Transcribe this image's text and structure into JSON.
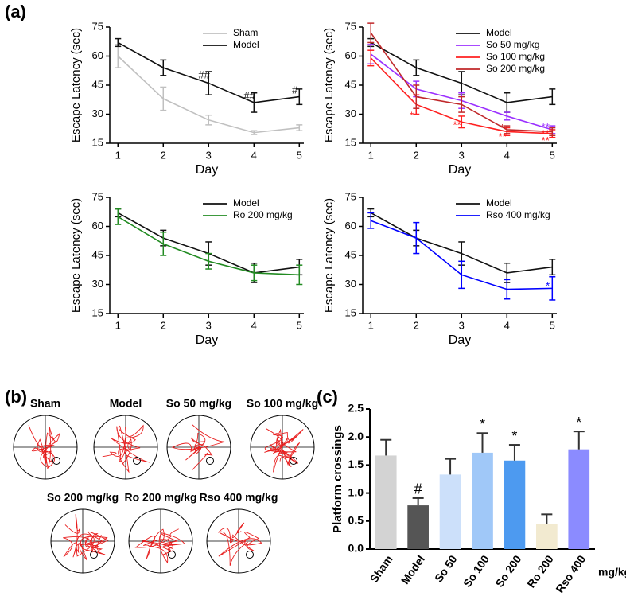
{
  "panel_labels": [
    "(a)",
    "(b)",
    "(c)"
  ],
  "chart_data": [
    {
      "type": "line",
      "xlabel": "Day",
      "ylabel": "Escape Latency (sec)",
      "x": [
        1,
        2,
        3,
        4,
        5
      ],
      "xlim": [
        0.82,
        5.1
      ],
      "xticks": [
        1,
        2,
        3,
        4,
        5
      ],
      "ylim": [
        15,
        75
      ],
      "yticks": [
        15,
        30,
        45,
        60,
        75
      ],
      "legend": "upper right",
      "series": [
        {
          "name": "Sham",
          "color": "#c0c0c0",
          "values": [
            60,
            38,
            27,
            20.5,
            23
          ],
          "errors": [
            6,
            6,
            2.5,
            1,
            1.5
          ]
        },
        {
          "name": "Model",
          "color": "#111111",
          "values": [
            67,
            54,
            46,
            36,
            39
          ],
          "errors": [
            2,
            4,
            6,
            5,
            4
          ]
        }
      ],
      "annotations": [
        {
          "text": "##",
          "x": 2.9,
          "y": 50,
          "color": "#111111"
        },
        {
          "text": "##",
          "x": 3.9,
          "y": 39,
          "color": "#111111"
        },
        {
          "text": "#",
          "x": 4.9,
          "y": 42,
          "color": "#111111"
        }
      ]
    },
    {
      "type": "line",
      "xlabel": "Day",
      "ylabel": "Escape Latency (sec)",
      "x": [
        1,
        2,
        3,
        4,
        5
      ],
      "xlim": [
        0.82,
        5.1
      ],
      "xticks": [
        1,
        2,
        3,
        4,
        5
      ],
      "ylim": [
        15,
        75
      ],
      "yticks": [
        15,
        30,
        45,
        60,
        75
      ],
      "legend": "upper right",
      "series": [
        {
          "name": "Model",
          "color": "#111111",
          "values": [
            67,
            54,
            46,
            36,
            39
          ],
          "errors": [
            2,
            4,
            6,
            5,
            4
          ]
        },
        {
          "name": "So 50 mg/kg",
          "color": "#9b30ff",
          "values": [
            61,
            43,
            37,
            29,
            22
          ],
          "errors": [
            5,
            4,
            4,
            2,
            2
          ]
        },
        {
          "name": "So 100 mg/kg",
          "color": "#ff2020",
          "values": [
            59,
            35,
            26,
            21,
            20
          ],
          "errors": [
            4,
            5,
            3,
            2,
            2
          ]
        },
        {
          "name": "So 200 mg/kg",
          "color": "#c0282a",
          "values": [
            72,
            39,
            35,
            22,
            21
          ],
          "errors": [
            5,
            6,
            4,
            2,
            2
          ]
        }
      ],
      "annotations": [
        {
          "text": "*",
          "x": 1.9,
          "y": 29,
          "color": "#ff2020"
        },
        {
          "text": "**",
          "x": 2.9,
          "y": 24,
          "color": "#ff2020"
        },
        {
          "text": "*",
          "x": 3.9,
          "y": 22.5,
          "color": "#c0282a"
        },
        {
          "text": "**",
          "x": 3.9,
          "y": 18,
          "color": "#ff2020"
        },
        {
          "text": "**",
          "x": 4.85,
          "y": 23,
          "color": "#9b30ff"
        },
        {
          "text": "**",
          "x": 4.85,
          "y": 19.5,
          "color": "#ff2020"
        },
        {
          "text": "**",
          "x": 4.85,
          "y": 16,
          "color": "#ff2020"
        }
      ]
    },
    {
      "type": "line",
      "xlabel": "Day",
      "ylabel": "Escape Latency (sec)",
      "x": [
        1,
        2,
        3,
        4,
        5
      ],
      "xlim": [
        0.82,
        5.1
      ],
      "xticks": [
        1,
        2,
        3,
        4,
        5
      ],
      "ylim": [
        15,
        75
      ],
      "yticks": [
        15,
        30,
        45,
        60,
        75
      ],
      "legend": "upper right",
      "series": [
        {
          "name": "Model",
          "color": "#111111",
          "values": [
            67,
            54,
            46,
            36,
            39
          ],
          "errors": [
            2,
            4,
            6,
            5,
            4
          ]
        },
        {
          "name": "Ro 200 mg/kg",
          "color": "#228b22",
          "values": [
            65,
            51,
            42,
            36,
            35
          ],
          "errors": [
            4,
            6,
            4,
            4,
            5
          ]
        }
      ]
    },
    {
      "type": "line",
      "xlabel": "Day",
      "ylabel": "Escape Latency (sec)",
      "x": [
        1,
        2,
        3,
        4,
        5
      ],
      "xlim": [
        0.82,
        5.1
      ],
      "xticks": [
        1,
        2,
        3,
        4,
        5
      ],
      "ylim": [
        15,
        75
      ],
      "yticks": [
        15,
        30,
        45,
        60,
        75
      ],
      "legend": "upper right",
      "series": [
        {
          "name": "Model",
          "color": "#111111",
          "values": [
            67,
            54,
            46,
            36,
            39
          ],
          "errors": [
            2,
            4,
            6,
            5,
            4
          ]
        },
        {
          "name": "Rso 400 mg/kg",
          "color": "#0000ff",
          "values": [
            63,
            54,
            35,
            27.5,
            28
          ],
          "errors": [
            4,
            8,
            7,
            5,
            6
          ]
        }
      ],
      "annotations": [
        {
          "text": "*",
          "x": 4.9,
          "y": 29,
          "color": "#0000ff"
        }
      ]
    },
    {
      "type": "bar",
      "ylabel": "Platform crossings",
      "x_unit": "mg/kg",
      "categories": [
        "Sham",
        "Model",
        "So 50",
        "So 100",
        "So 200",
        "Ro 200",
        "Rso 400"
      ],
      "values": [
        1.67,
        0.78,
        1.33,
        1.72,
        1.58,
        0.45,
        1.78
      ],
      "errors": [
        0.28,
        0.13,
        0.28,
        0.35,
        0.28,
        0.17,
        0.32
      ],
      "colors": [
        "#d3d3d3",
        "#555555",
        "#cce0fa",
        "#a0c8f8",
        "#4d9af0",
        "#f2ead0",
        "#8b8bff"
      ],
      "ylim": [
        0,
        2.5
      ],
      "yticks": [
        {
          "value": 0,
          "label": "0.0"
        },
        0.5,
        {
          "value": 1,
          "label": "1.0"
        },
        1.5,
        {
          "value": 2,
          "label": "2.0"
        },
        2.5
      ],
      "annotations": [
        {
          "text": "#",
          "category": "Model"
        },
        {
          "text": "*",
          "category": "So 100"
        },
        {
          "text": "*",
          "category": "So 200"
        },
        {
          "text": "*",
          "category": "Rso 400"
        }
      ]
    }
  ],
  "swim_paths": {
    "titles": [
      "Sham",
      "Model",
      "So 50 mg/kg",
      "So 100 mg/kg",
      "So 200 mg/kg",
      "Ro 200 mg/kg",
      "Rso 400 mg/kg"
    ]
  }
}
